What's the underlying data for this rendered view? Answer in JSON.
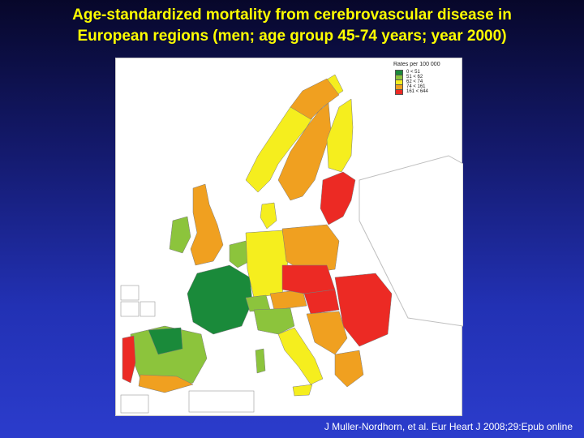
{
  "title": {
    "line1": "Age-standardized mortality from cerebrovascular disease in",
    "line2": "European regions (men; age group 45-74 years; year 2000)"
  },
  "legend": {
    "title": "Rates per 100 000",
    "items": [
      {
        "label": "0 < 51",
        "color": "#1a8a3a"
      },
      {
        "label": "51 < 62",
        "color": "#8cc43c"
      },
      {
        "label": "62 < 74",
        "color": "#f5ee1e"
      },
      {
        "label": "74 < 161",
        "color": "#f0a020"
      },
      {
        "label": "161 < 644",
        "color": "#ec2a24"
      }
    ]
  },
  "citation": "J Muller-Nordhorn, et al. Eur Heart J 2008;29:Epub online"
}
